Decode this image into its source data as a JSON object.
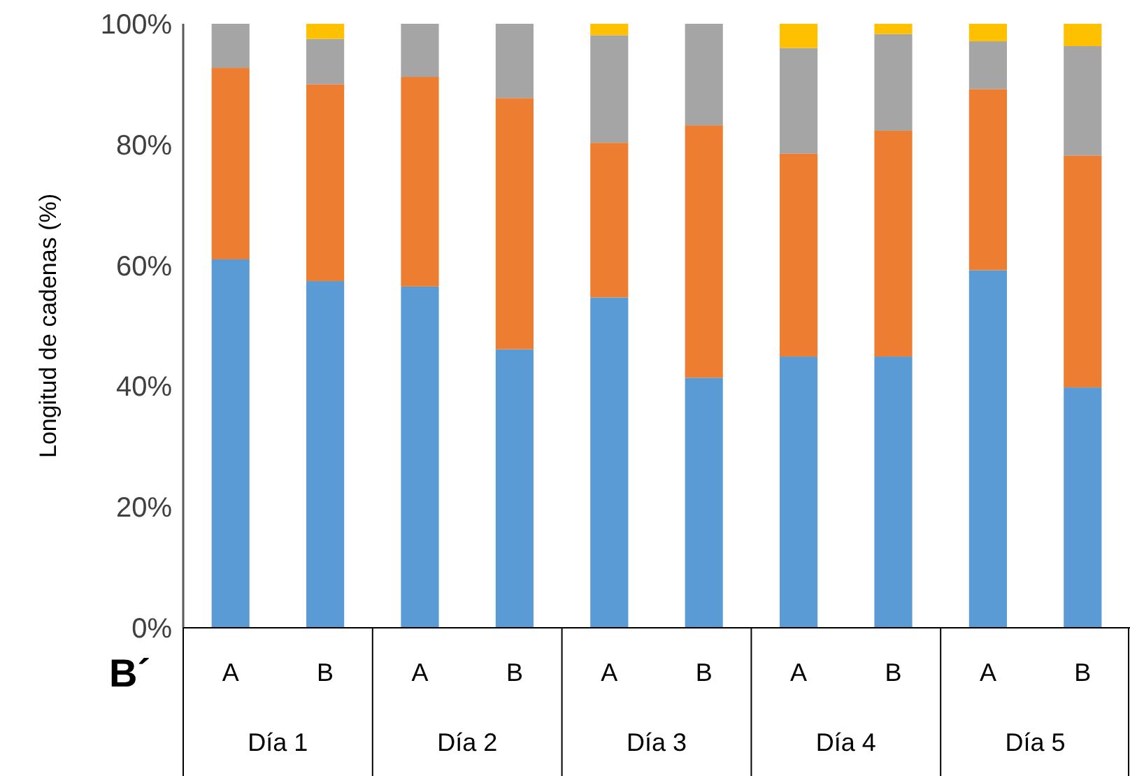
{
  "chart_data": {
    "type": "bar",
    "stacked": true,
    "ylabel": "Longitud de cadenas (%)",
    "categories": [
      "A",
      "B",
      "A",
      "B",
      "A",
      "B",
      "A",
      "B",
      "A",
      "B"
    ],
    "series": [
      {
        "color": "#5b9bd5",
        "values": [
          61.0,
          57.4,
          56.5,
          46.1,
          54.7,
          41.4,
          44.9,
          44.9,
          59.2,
          39.8
        ]
      },
      {
        "color": "#ed7d31",
        "values": [
          31.7,
          32.6,
          34.7,
          41.6,
          25.6,
          41.8,
          33.6,
          37.4,
          30.0,
          38.4
        ]
      },
      {
        "color": "#a5a5a5",
        "values": [
          7.3,
          7.5,
          8.8,
          12.3,
          17.8,
          16.8,
          17.5,
          16.0,
          7.9,
          18.1
        ]
      },
      {
        "color": "#ffc000",
        "values": [
          0,
          2.5,
          0,
          0,
          1.9,
          0,
          4.0,
          1.7,
          2.9,
          3.7
        ]
      }
    ],
    "ylim": [
      0,
      100
    ],
    "yticks": [
      {
        "value": 0,
        "label": "0%"
      },
      {
        "value": 20,
        "label": "20%"
      },
      {
        "value": 40,
        "label": "40%"
      },
      {
        "value": 60,
        "label": "60%"
      },
      {
        "value": 80,
        "label": "80%"
      },
      {
        "value": 100,
        "label": "100%"
      }
    ],
    "annotations": [
      "B´",
      "Día 1",
      "Día 2",
      "Día 3",
      "Día 4",
      "Día 5"
    ]
  }
}
